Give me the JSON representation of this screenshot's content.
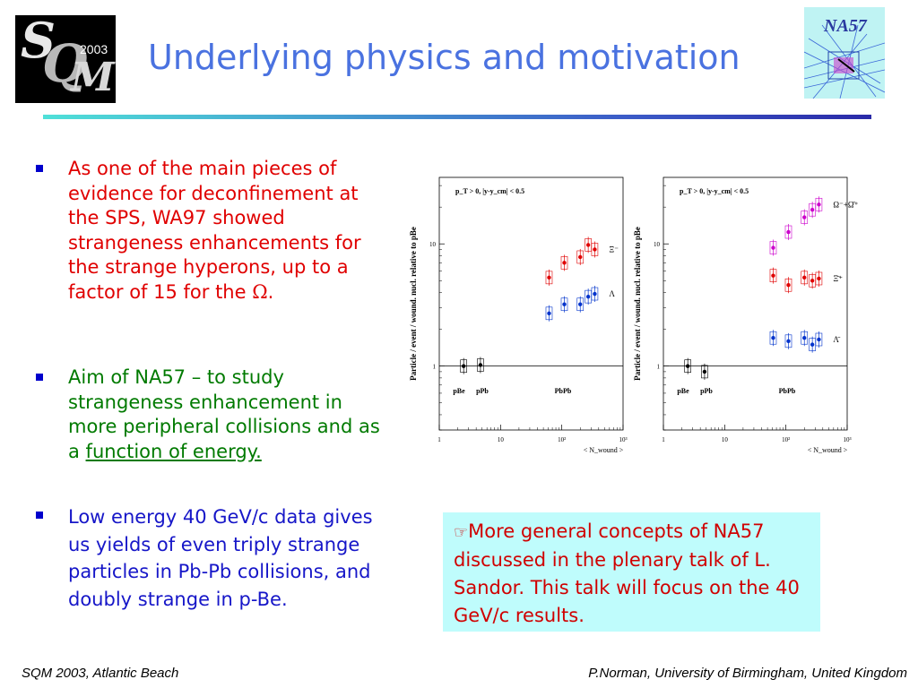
{
  "logos": {
    "left": {
      "letters": [
        "S",
        "Q",
        "M"
      ],
      "year": "2003"
    },
    "right": {
      "text": "NA57"
    }
  },
  "title": "Underlying physics and motivation",
  "bullets": [
    {
      "text_before": "As one of the main pieces of evidence for deconfinement at the SPS, WA97 showed strangeness enhancements for the strange hyperons, up to a factor of 15 for the ",
      "symbol": "Ω",
      "text_after": ".",
      "color": "#e00000"
    },
    {
      "text_before": "Aim of NA57 – to study strangeness enhancement in more peripheral collisions and as a ",
      "underlined": "function of energy.",
      "color": "#007a00"
    },
    {
      "text": "Low energy 40 GeV/c data gives us yields of even triply strange particles in Pb-Pb collisions, and doubly strange in p-Be.",
      "color": "#1616c8"
    }
  ],
  "callout": {
    "icon": "hand-pointer-icon",
    "text": "More general concepts of NA57 discussed in the plenary talk of L. Sandor. This talk will focus on the 40 GeV/c results."
  },
  "footer": {
    "left": "SQM 2003, Atlantic Beach",
    "right": "P.Norman, University of Birmingham, United Kingdom"
  },
  "chart_data": [
    {
      "type": "scatter",
      "ylabel": "Particle / event / wound. nucl. relative to pBe",
      "xlabel": "< N_wound >",
      "cut_label": "p_T > 0,  |y-y_cm| < 0.5",
      "x_scale": "log",
      "y_scale": "log",
      "xlim": [
        1,
        1000
      ],
      "ylim": [
        0.3,
        35
      ],
      "x_tick_labels": [
        "1",
        "10",
        "10²",
        "10³"
      ],
      "y_tick_labels": [
        "1",
        "10"
      ],
      "reference_line_y": 1,
      "region_labels": [
        "pBe",
        "pPb",
        "PbPb"
      ],
      "series": [
        {
          "name": "Ξ⁻",
          "color": "#e00000",
          "points": [
            {
              "x": 62,
              "y": 5.3
            },
            {
              "x": 110,
              "y": 7.0
            },
            {
              "x": 200,
              "y": 7.8
            },
            {
              "x": 270,
              "y": 9.8
            },
            {
              "x": 345,
              "y": 9.0
            }
          ]
        },
        {
          "name": "Λ",
          "color": "#0033cc",
          "points": [
            {
              "x": 62,
              "y": 2.7
            },
            {
              "x": 110,
              "y": 3.2
            },
            {
              "x": 200,
              "y": 3.2
            },
            {
              "x": 270,
              "y": 3.7
            },
            {
              "x": 345,
              "y": 3.9
            }
          ]
        },
        {
          "name": "",
          "color": "#000000",
          "points": [
            {
              "x": 2.5,
              "y": 1.0
            },
            {
              "x": 4.7,
              "y": 1.02
            }
          ]
        }
      ]
    },
    {
      "type": "scatter",
      "ylabel": "Particle / event / wound. nucl. relative to pBe",
      "xlabel": "< N_wound >",
      "cut_label": "p_T > 0,  |y-y_cm| < 0.5",
      "x_scale": "log",
      "y_scale": "log",
      "xlim": [
        1,
        1000
      ],
      "ylim": [
        0.3,
        35
      ],
      "x_tick_labels": [
        "1",
        "10",
        "10²",
        "10³"
      ],
      "y_tick_labels": [
        "1",
        "10"
      ],
      "reference_line_y": 1,
      "region_labels": [
        "pBe",
        "pPb",
        "PbPb"
      ],
      "series": [
        {
          "name": "Ω⁻+Ω̄⁺",
          "color": "#cc00cc",
          "points": [
            {
              "x": 62,
              "y": 9.3
            },
            {
              "x": 110,
              "y": 12.5
            },
            {
              "x": 200,
              "y": 16.5
            },
            {
              "x": 270,
              "y": 19.0
            },
            {
              "x": 345,
              "y": 21.0
            }
          ]
        },
        {
          "name": "Ξ̄⁺",
          "color": "#e00000",
          "points": [
            {
              "x": 62,
              "y": 5.5
            },
            {
              "x": 110,
              "y": 4.6
            },
            {
              "x": 200,
              "y": 5.3
            },
            {
              "x": 270,
              "y": 5.0
            },
            {
              "x": 345,
              "y": 5.2
            }
          ]
        },
        {
          "name": "Λ̄",
          "color": "#0033cc",
          "points": [
            {
              "x": 62,
              "y": 1.7
            },
            {
              "x": 110,
              "y": 1.6
            },
            {
              "x": 200,
              "y": 1.7
            },
            {
              "x": 270,
              "y": 1.5
            },
            {
              "x": 345,
              "y": 1.65
            }
          ]
        },
        {
          "name": "",
          "color": "#000000",
          "points": [
            {
              "x": 2.5,
              "y": 1.0
            },
            {
              "x": 4.7,
              "y": 0.9
            }
          ]
        }
      ]
    }
  ]
}
